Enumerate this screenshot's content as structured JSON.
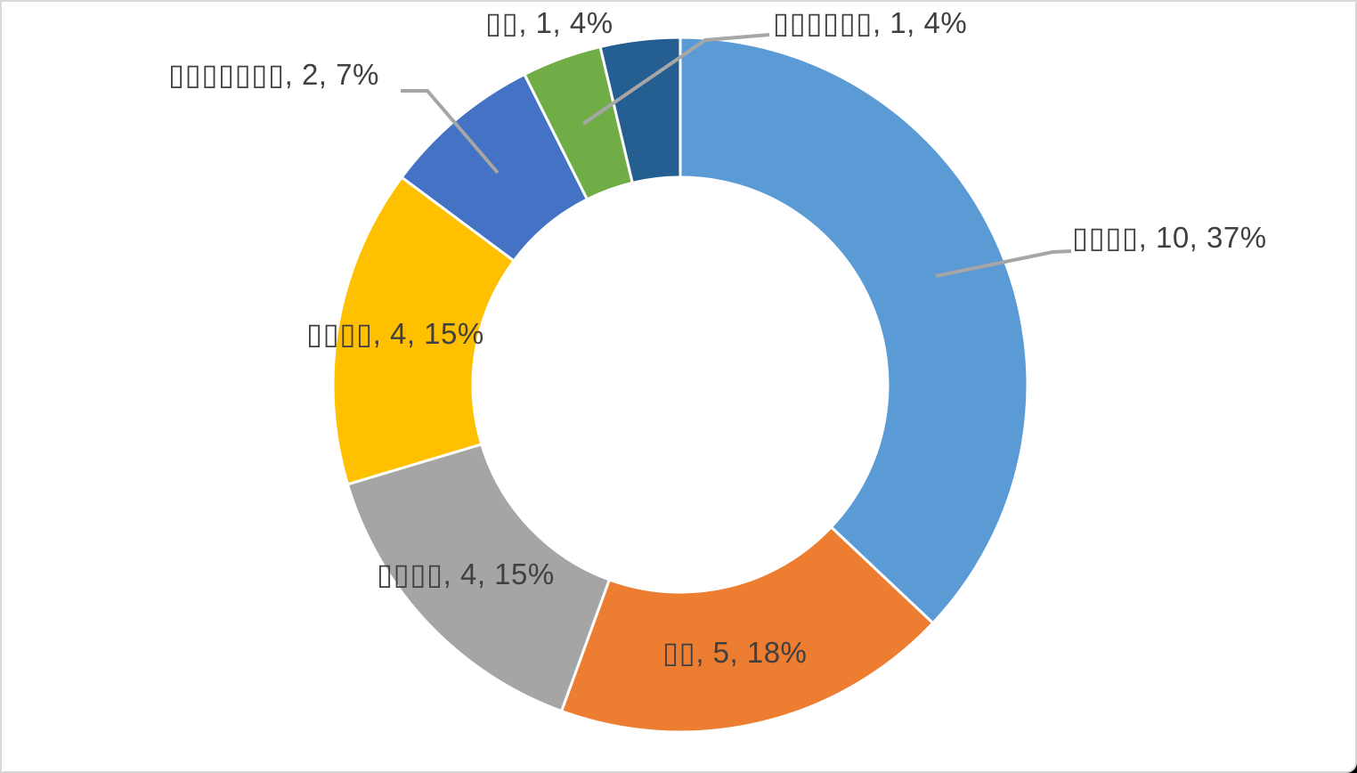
{
  "chart_data": {
    "type": "doughnut",
    "title": "",
    "legend": "none",
    "total": 27,
    "direction": "clockwise",
    "start_angle_deg": 0,
    "hole_ratio": 0.597,
    "label_color": "#404040",
    "leader_line_color": "#a6a6a6",
    "frame_border_color": "#d9d9d9",
    "slice_gap_color": "#ffffff",
    "glyph_note": "category names are rendered as missing-glyph boxes in the source image",
    "slices": [
      {
        "name": "▯▯▯▯",
        "value": 10,
        "pct": "37%",
        "label": "▯▯▯▯, 10, 37%",
        "color": "#5b9bd5"
      },
      {
        "name": "▯▯",
        "value": 5,
        "pct": "18%",
        "label": "▯▯, 5, 18%",
        "color": "#ed7d31"
      },
      {
        "name": "▯▯▯▯",
        "value": 4,
        "pct": "15%",
        "label": "▯▯▯▯, 4, 15%",
        "color": "#a5a5a5"
      },
      {
        "name": "▯▯▯▯",
        "value": 4,
        "pct": "15%",
        "label": "▯▯▯▯, 4, 15%",
        "color": "#ffc000"
      },
      {
        "name": "▯▯▯▯▯▯▯",
        "value": 2,
        "pct": "7%",
        "label": "▯▯▯▯▯▯▯, 2, 7%",
        "color": "#4472c4"
      },
      {
        "name": "▯▯▯▯▯▯",
        "value": 1,
        "pct": "4%",
        "label": "▯▯▯▯▯▯, 1, 4%",
        "color": "#70ad47"
      },
      {
        "name": "▯▯",
        "value": 1,
        "pct": "4%",
        "label": "▯▯, 1, 4%",
        "color": "#255e91"
      }
    ]
  }
}
